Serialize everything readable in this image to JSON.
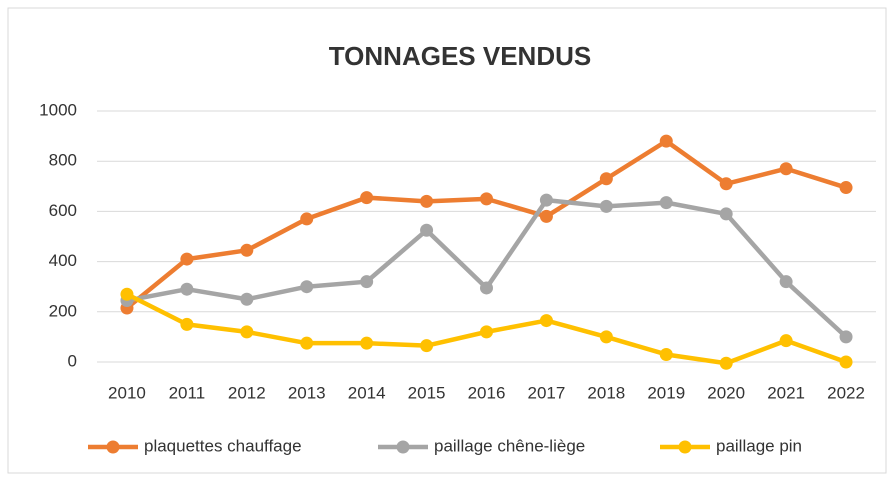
{
  "chart_data": {
    "type": "line",
    "title": "TONNAGES VENDUS",
    "categories": [
      "2010",
      "2011",
      "2012",
      "2013",
      "2014",
      "2015",
      "2016",
      "2017",
      "2018",
      "2019",
      "2020",
      "2021",
      "2022"
    ],
    "series": [
      {
        "name": "plaquettes chauffage",
        "color": "#ed7d31",
        "values": [
          215,
          410,
          445,
          570,
          655,
          640,
          650,
          580,
          730,
          880,
          710,
          770,
          695
        ]
      },
      {
        "name": "paillage chêne-liège",
        "color": "#a5a5a5",
        "values": [
          245,
          290,
          250,
          300,
          320,
          525,
          295,
          645,
          620,
          635,
          590,
          320,
          100
        ]
      },
      {
        "name": "paillage pin",
        "color": "#ffc000",
        "values": [
          270,
          150,
          120,
          75,
          75,
          65,
          120,
          165,
          100,
          30,
          -5,
          85,
          0
        ]
      }
    ],
    "ylim": [
      0,
      1000
    ],
    "yticks": [
      0,
      200,
      400,
      600,
      800,
      1000
    ],
    "grid": true,
    "legend": "bottom"
  }
}
